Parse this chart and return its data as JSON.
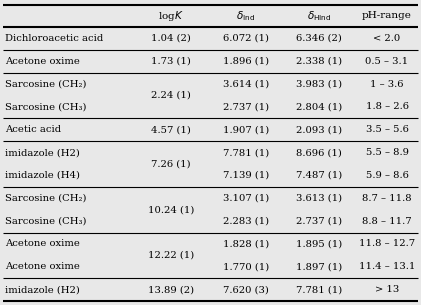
{
  "rows": [
    {
      "compound": "Dichloroacetic acid",
      "logK": "1.04 (2)",
      "delta_Ind": "6.072 (1)",
      "delta_HInd": "6.346 (2)",
      "pH_range": "< 2.0",
      "rowspan": 1,
      "group": 0
    },
    {
      "compound": "Acetone oxime",
      "logK": "1.73 (1)",
      "delta_Ind": "1.896 (1)",
      "delta_HInd": "2.338 (1)",
      "pH_range": "0.5 – 3.1",
      "rowspan": 1,
      "group": 1
    },
    {
      "compound": "Sarcosine (CH₂)",
      "logK": "2.24 (1)",
      "delta_Ind": "3.614 (1)",
      "delta_HInd": "3.983 (1)",
      "pH_range": "1 – 3.6",
      "rowspan": 2,
      "group": 2,
      "subrow": 0
    },
    {
      "compound": "Sarcosine (CH₃)",
      "logK": "",
      "delta_Ind": "2.737 (1)",
      "delta_HInd": "2.804 (1)",
      "pH_range": "1.8 – 2.6",
      "rowspan": 0,
      "group": 2,
      "subrow": 1
    },
    {
      "compound": "Acetic acid",
      "logK": "4.57 (1)",
      "delta_Ind": "1.907 (1)",
      "delta_HInd": "2.093 (1)",
      "pH_range": "3.5 – 5.6",
      "rowspan": 1,
      "group": 3
    },
    {
      "compound": "imidazole (H2)",
      "logK": "7.26 (1)",
      "delta_Ind": "7.781 (1)",
      "delta_HInd": "8.696 (1)",
      "pH_range": "5.5 – 8.9",
      "rowspan": 2,
      "group": 4,
      "subrow": 0
    },
    {
      "compound": "imidazole (H4)",
      "logK": "",
      "delta_Ind": "7.139 (1)",
      "delta_HInd": "7.487 (1)",
      "pH_range": "5.9 – 8.6",
      "rowspan": 0,
      "group": 4,
      "subrow": 1
    },
    {
      "compound": "Sarcosine (CH₂)",
      "logK": "10.24 (1)",
      "delta_Ind": "3.107 (1)",
      "delta_HInd": "3.613 (1)",
      "pH_range": "8.7 – 11.8",
      "rowspan": 2,
      "group": 5,
      "subrow": 0
    },
    {
      "compound": "Sarcosine (CH₃)",
      "logK": "",
      "delta_Ind": "2.283 (1)",
      "delta_HInd": "2.737 (1)",
      "pH_range": "8.8 – 11.7",
      "rowspan": 0,
      "group": 5,
      "subrow": 1
    },
    {
      "compound": "Acetone oxime",
      "logK": "12.22 (1)",
      "delta_Ind": "1.828 (1)",
      "delta_HInd": "1.895 (1)",
      "pH_range": "11.8 – 12.7",
      "rowspan": 2,
      "group": 6,
      "subrow": 0
    },
    {
      "compound": "Acetone oxime",
      "logK": "",
      "delta_Ind": "1.770 (1)",
      "delta_HInd": "1.897 (1)",
      "pH_range": "11.4 – 13.1",
      "rowspan": 0,
      "group": 6,
      "subrow": 1
    },
    {
      "compound": "imidazole (H2)",
      "logK": "13.89 (2)",
      "delta_Ind": "7.620 (3)",
      "delta_HInd": "7.781 (1)",
      "pH_range": "> 13",
      "rowspan": 1,
      "group": 7
    }
  ],
  "text_color": "#000000",
  "font_size": 7.2,
  "header_font_size": 7.5
}
